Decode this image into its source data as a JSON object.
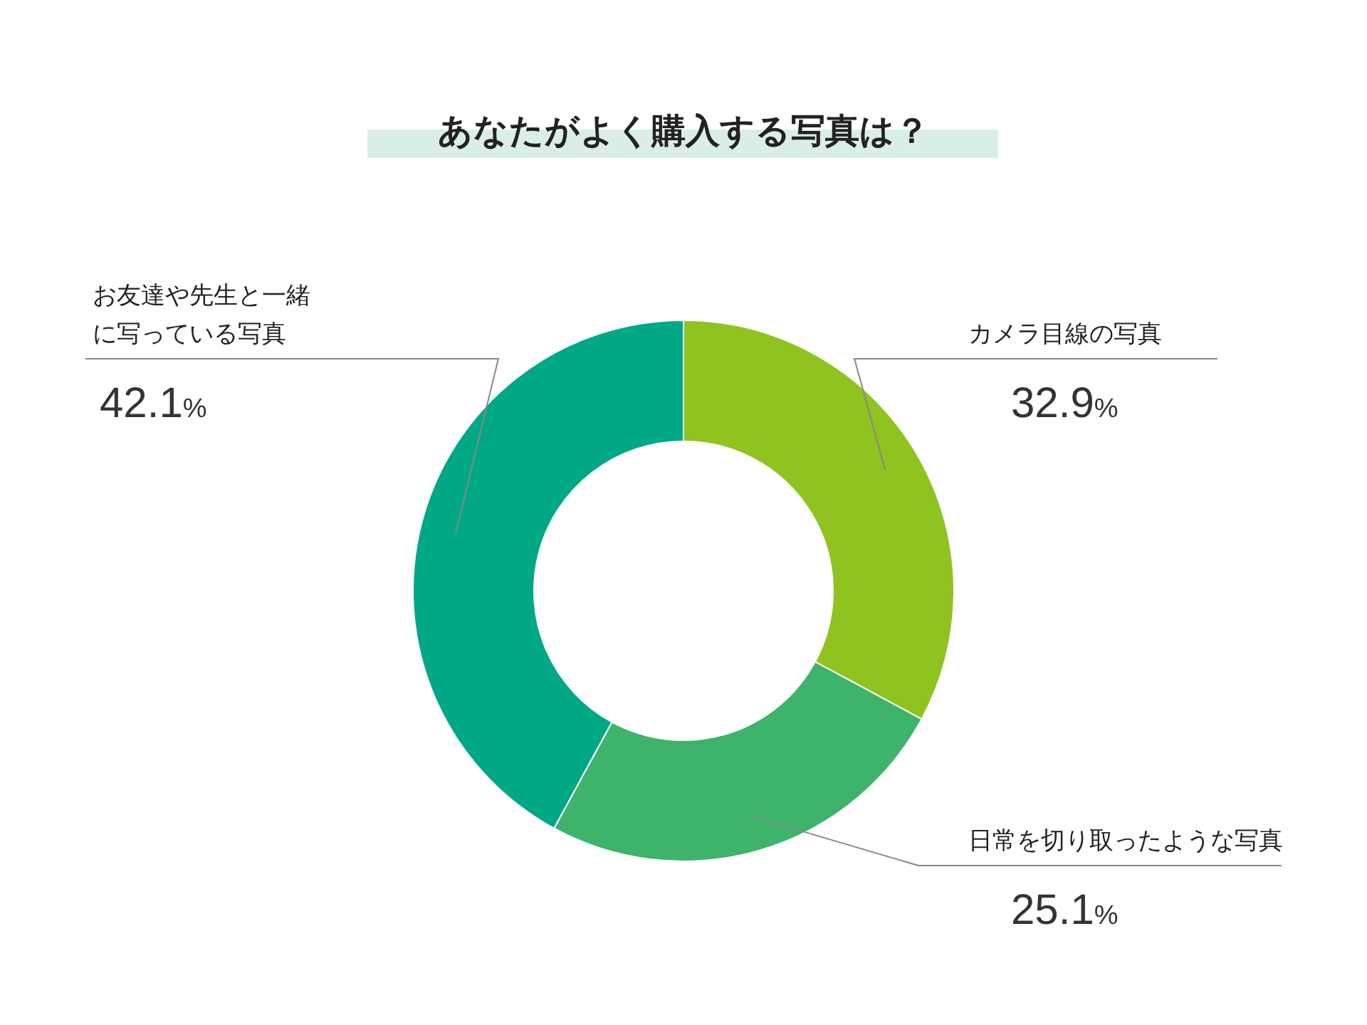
{
  "chart_data": {
    "type": "donut",
    "title": "あなたがよく購入する写真は？",
    "categories": [
      "カメラ目線の写真",
      "日常を切り取ったような写真",
      "お友達や先生と一緒に写っている写真"
    ],
    "values": [
      32.9,
      25.1,
      42.1
    ],
    "colors": [
      "#8fc31f",
      "#3db36b",
      "#00a886"
    ],
    "value_labels": [
      "32.9%",
      "25.1%",
      "42.1%"
    ]
  }
}
